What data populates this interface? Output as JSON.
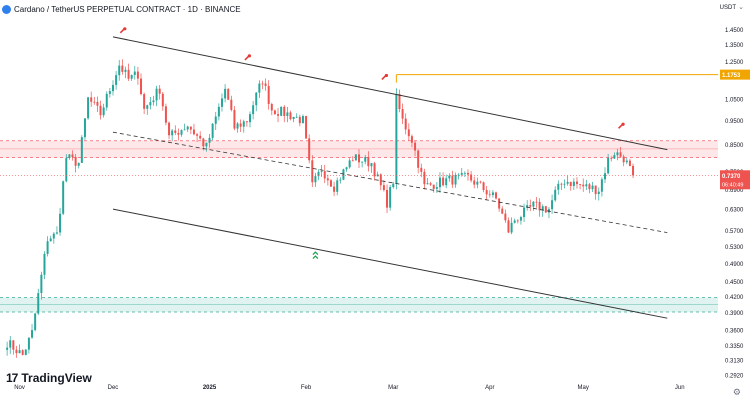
{
  "header": {
    "title": "Cardano / TetherUS PERPETUAL CONTRACT · 1D · BINANCE",
    "currency": "USDT"
  },
  "brand": {
    "name": "TradingView"
  },
  "colors": {
    "up": "#26a69a",
    "down": "#ef5350",
    "accent": "#f0a500",
    "resistance_zone": "#f23645",
    "support_zone": "#089981",
    "trendline": "#333333"
  },
  "chart_data": {
    "type": "candlestick",
    "symbol": "ADAUSDT.P",
    "interval": "1D",
    "y_scale": "log",
    "ylim": [
      0.292,
      1.5
    ],
    "x_tick_labels": [
      "Nov",
      "Dec",
      "2025",
      "Feb",
      "Mar",
      "Apr",
      "May",
      "Jun"
    ],
    "y_tick_labels": [
      "1.4500",
      "1.3500",
      "1.2500",
      "1.1700",
      "1.0500",
      "0.9500",
      "0.8500",
      "0.7500",
      "0.6900",
      "0.6300",
      "0.5700",
      "0.5300",
      "0.4900",
      "0.4500",
      "0.4200",
      "0.3900",
      "0.3600",
      "0.3350",
      "0.3130",
      "0.2920"
    ],
    "anchors": [
      [
        "2024-10-28",
        0.34
      ],
      [
        "2024-11-02",
        0.32
      ],
      [
        "2024-11-05",
        0.355
      ],
      [
        "2024-11-10",
        0.55
      ],
      [
        "2024-11-13",
        0.56
      ],
      [
        "2024-11-16",
        0.8
      ],
      [
        "2024-11-20",
        0.78
      ],
      [
        "2024-11-23",
        1.05
      ],
      [
        "2024-11-27",
        0.98
      ],
      [
        "2024-12-03",
        1.23
      ],
      [
        "2024-12-06",
        1.15
      ],
      [
        "2024-12-09",
        1.18
      ],
      [
        "2024-12-11",
        1.0
      ],
      [
        "2024-12-16",
        1.1
      ],
      [
        "2024-12-19",
        0.88
      ],
      [
        "2024-12-25",
        0.93
      ],
      [
        "2024-12-31",
        0.84
      ],
      [
        "2025-01-06",
        1.1
      ],
      [
        "2025-01-09",
        0.92
      ],
      [
        "2025-01-13",
        0.95
      ],
      [
        "2025-01-18",
        1.15
      ],
      [
        "2025-01-21",
        1.0
      ],
      [
        "2025-01-26",
        0.98
      ],
      [
        "2025-01-31",
        0.95
      ],
      [
        "2025-02-03",
        0.7
      ],
      [
        "2025-02-06",
        0.76
      ],
      [
        "2025-02-10",
        0.7
      ],
      [
        "2025-02-16",
        0.8
      ],
      [
        "2025-02-22",
        0.78
      ],
      [
        "2025-02-27",
        0.65
      ],
      [
        "2025-03-01",
        0.72
      ],
      [
        "2025-03-02",
        1.05
      ],
      [
        "2025-03-04",
        0.95
      ],
      [
        "2025-03-07",
        0.87
      ],
      [
        "2025-03-11",
        0.7
      ],
      [
        "2025-03-18",
        0.72
      ],
      [
        "2025-03-25",
        0.73
      ],
      [
        "2025-03-29",
        0.7
      ],
      [
        "2025-04-03",
        0.66
      ],
      [
        "2025-04-07",
        0.57
      ],
      [
        "2025-04-09",
        0.6
      ],
      [
        "2025-04-15",
        0.64
      ],
      [
        "2025-04-20",
        0.63
      ],
      [
        "2025-04-22",
        0.68
      ],
      [
        "2025-04-25",
        0.72
      ],
      [
        "2025-05-01",
        0.7
      ],
      [
        "2025-05-06",
        0.69
      ],
      [
        "2025-05-09",
        0.79
      ],
      [
        "2025-05-11",
        0.82
      ],
      [
        "2025-05-14",
        0.8
      ],
      [
        "2025-05-17",
        0.737
      ]
    ],
    "last_price": "0.7370",
    "countdown": "06:40:49",
    "horizontal_line": {
      "price": "1.1753",
      "start_date": "2025-03-02"
    },
    "resistance_zone": {
      "top": 0.865,
      "bottom": 0.8,
      "mid": 0.833
    },
    "support_zone": {
      "top": 0.418,
      "bottom": 0.391,
      "mid": 0.405
    },
    "channel": {
      "upper": [
        [
          "2024-12-01",
          1.4
        ],
        [
          "2025-05-28",
          0.83
        ]
      ],
      "middle": [
        [
          "2024-12-01",
          0.9
        ],
        [
          "2025-05-28",
          0.565
        ]
      ],
      "lower": [
        [
          "2024-12-01",
          0.63
        ],
        [
          "2025-05-28",
          0.38
        ]
      ]
    },
    "markers": [
      {
        "date": "2024-12-04",
        "price": 1.44,
        "type": "sell"
      },
      {
        "date": "2025-01-13",
        "price": 1.27,
        "type": "sell"
      },
      {
        "date": "2025-02-26",
        "price": 1.16,
        "type": "sell"
      },
      {
        "date": "2025-05-13",
        "price": 0.925,
        "type": "sell"
      },
      {
        "date": "2025-02-04",
        "price": 0.515,
        "type": "buy"
      }
    ]
  }
}
